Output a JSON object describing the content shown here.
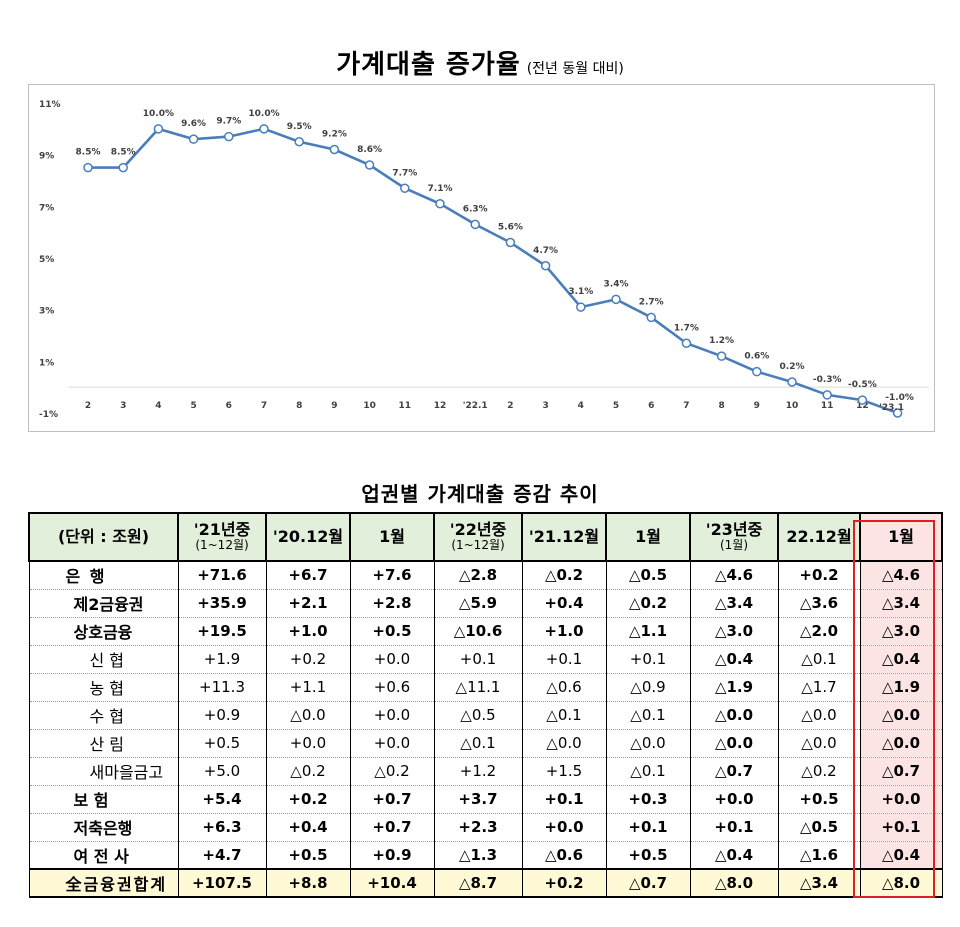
{
  "chart_data": {
    "type": "line",
    "title": "가계대출 증가율",
    "subtitle": "(전년 동월 대비)",
    "x": [
      "2",
      "3",
      "4",
      "5",
      "6",
      "7",
      "8",
      "9",
      "10",
      "11",
      "12",
      "'22.1",
      "2",
      "3",
      "4",
      "5",
      "6",
      "7",
      "8",
      "9",
      "10",
      "11",
      "12",
      "'23.1"
    ],
    "x_tick_labels": [
      "2",
      "3",
      "4",
      "5",
      "6",
      "7",
      "8",
      "9",
      "10",
      "11",
      "12",
      "'22.1",
      "2",
      "3",
      "4",
      "5",
      "6",
      "7",
      "8",
      "9",
      "10",
      "11",
      "12",
      ""
    ],
    "series": [
      {
        "values": [
          8.5,
          8.5,
          10.0,
          9.6,
          9.7,
          10.0,
          9.5,
          9.2,
          8.6,
          7.7,
          7.1,
          6.3,
          5.6,
          4.7,
          3.1,
          3.4,
          2.7,
          1.7,
          1.2,
          0.6,
          0.2,
          -0.3,
          -0.5,
          -1.0
        ],
        "labels": [
          "8.5%",
          "8.5%",
          "10.0%",
          "9.6%",
          "9.7%",
          "10.0%",
          "9.5%",
          "9.2%",
          "8.6%",
          "7.7%",
          "7.1%",
          "6.3%",
          "5.6%",
          "4.7%",
          "3.1%",
          "3.4%",
          "2.7%",
          "1.7%",
          "1.2%",
          "0.6%",
          "0.2%",
          "-0.3%",
          "-0.5%",
          "-1.0%"
        ],
        "color": "#4a7ebb"
      }
    ],
    "point_note": "'23.1",
    "y_ticks": [
      "11%",
      "9%",
      "7%",
      "5%",
      "3%",
      "1%",
      "-1%"
    ],
    "y_tick_values": [
      11,
      9,
      7,
      5,
      3,
      1,
      -1
    ],
    "ylim": [
      -1,
      11
    ],
    "grid": false,
    "legend": "none"
  },
  "table": {
    "title": "업권별 가계대출 증감 추이",
    "headers": [
      {
        "main": "(단위 : 조원)",
        "sub": ""
      },
      {
        "main": "'21년중",
        "sub": "(1~12월)"
      },
      {
        "main": "'20.12월",
        "sub": ""
      },
      {
        "main": "1월",
        "sub": ""
      },
      {
        "main": "'22년중",
        "sub": "(1~12월)"
      },
      {
        "main": "'21.12월",
        "sub": ""
      },
      {
        "main": "1월",
        "sub": ""
      },
      {
        "main": "'23년중",
        "sub": "(1월)"
      },
      {
        "main": "22.12월",
        "sub": ""
      },
      {
        "main": "1월",
        "sub": ""
      }
    ],
    "rows": [
      {
        "label": "은        행",
        "values": [
          "+71.6",
          "+6.7",
          "+7.6",
          "△2.8",
          "△0.2",
          "△0.5",
          "△4.6",
          "+0.2",
          "△4.6"
        ]
      },
      {
        "label": "제2금융권",
        "values": [
          "+35.9",
          "+2.1",
          "+2.8",
          "△5.9",
          "+0.4",
          "△0.2",
          "△3.4",
          "△3.6",
          "△3.4"
        ]
      },
      {
        "label": "상호금융",
        "values": [
          "+19.5",
          "+1.0",
          "+0.5",
          "△10.6",
          "+1.0",
          "△1.1",
          "△3.0",
          "△2.0",
          "△3.0"
        ]
      },
      {
        "label": "신    협",
        "values": [
          "+1.9",
          "+0.2",
          "+0.0",
          "+0.1",
          "+0.1",
          "+0.1",
          "△0.4",
          "△0.1",
          "△0.4"
        ]
      },
      {
        "label": "농    협",
        "values": [
          "+11.3",
          "+1.1",
          "+0.6",
          "△11.1",
          "△0.6",
          "△0.9",
          "△1.9",
          "△1.7",
          "△1.9"
        ]
      },
      {
        "label": "수    협",
        "values": [
          "+0.9",
          "△0.0",
          "+0.0",
          "△0.5",
          "△0.1",
          "△0.1",
          "△0.0",
          "△0.0",
          "△0.0"
        ]
      },
      {
        "label": "산    림",
        "values": [
          "+0.5",
          "+0.0",
          "+0.0",
          "△0.1",
          "△0.0",
          "△0.0",
          "△0.0",
          "△0.0",
          "△0.0"
        ]
      },
      {
        "label": "새마을금고",
        "values": [
          "+5.0",
          "△0.2",
          "△0.2",
          "+1.2",
          "+1.5",
          "△0.1",
          "△0.7",
          "△0.2",
          "△0.7"
        ]
      },
      {
        "label": "보    험",
        "values": [
          "+5.4",
          "+0.2",
          "+0.7",
          "+3.7",
          "+0.1",
          "+0.3",
          "+0.0",
          "+0.5",
          "+0.0"
        ]
      },
      {
        "label": "저축은행",
        "values": [
          "+6.3",
          "+0.4",
          "+0.7",
          "+2.3",
          "+0.0",
          "+0.1",
          "+0.1",
          "△0.5",
          "+0.1"
        ]
      },
      {
        "label": "여 전 사",
        "values": [
          "+4.7",
          "+0.5",
          "+0.9",
          "△1.3",
          "△0.6",
          "+0.5",
          "△0.4",
          "△1.6",
          "△0.4"
        ]
      },
      {
        "label": "全금융권합계",
        "values": [
          "+107.5",
          "+8.8",
          "+10.4",
          "△8.7",
          "+0.2",
          "△0.7",
          "△8.0",
          "△3.4",
          "△8.0"
        ]
      }
    ],
    "highlight_color": "#e02020"
  }
}
